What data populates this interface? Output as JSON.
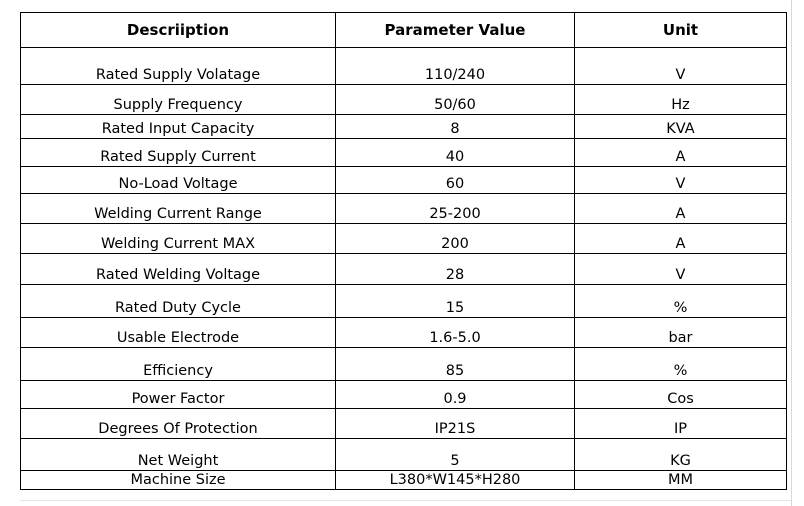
{
  "table": {
    "headers": [
      "Descriiption",
      "Parameter Value",
      "Unit"
    ],
    "rows": [
      {
        "description": "Rated Supply Volatage",
        "value": "110/240",
        "unit": "V"
      },
      {
        "description": "Supply Frequency",
        "value": "50/60",
        "unit": "Hz"
      },
      {
        "description": "Rated Input Capacity",
        "value": "8",
        "unit": "KVA"
      },
      {
        "description": "Rated Supply Current",
        "value": "40",
        "unit": "A"
      },
      {
        "description": "No-Load Voltage",
        "value": "60",
        "unit": "V"
      },
      {
        "description": "Welding Current Range",
        "value": "25-200",
        "unit": "A"
      },
      {
        "description": "Welding Current MAX",
        "value": "200",
        "unit": "A"
      },
      {
        "description": "Rated Welding Voltage",
        "value": "28",
        "unit": "V"
      },
      {
        "description": "Rated Duty Cycle",
        "value": "15",
        "unit": "%"
      },
      {
        "description": "Usable Electrode",
        "value": "1.6-5.0",
        "unit": "bar"
      },
      {
        "description": "Efficiency",
        "value": "85",
        "unit": "%"
      },
      {
        "description": "Power Factor",
        "value": "0.9",
        "unit": "Cos"
      },
      {
        "description": "Degrees Of Protection",
        "value": "IP21S",
        "unit": "IP"
      },
      {
        "description": "Net Weight",
        "value": "5",
        "unit": "KG"
      },
      {
        "description": "Machine Size",
        "value": "L380*W145*H280",
        "unit": "MM"
      }
    ]
  }
}
